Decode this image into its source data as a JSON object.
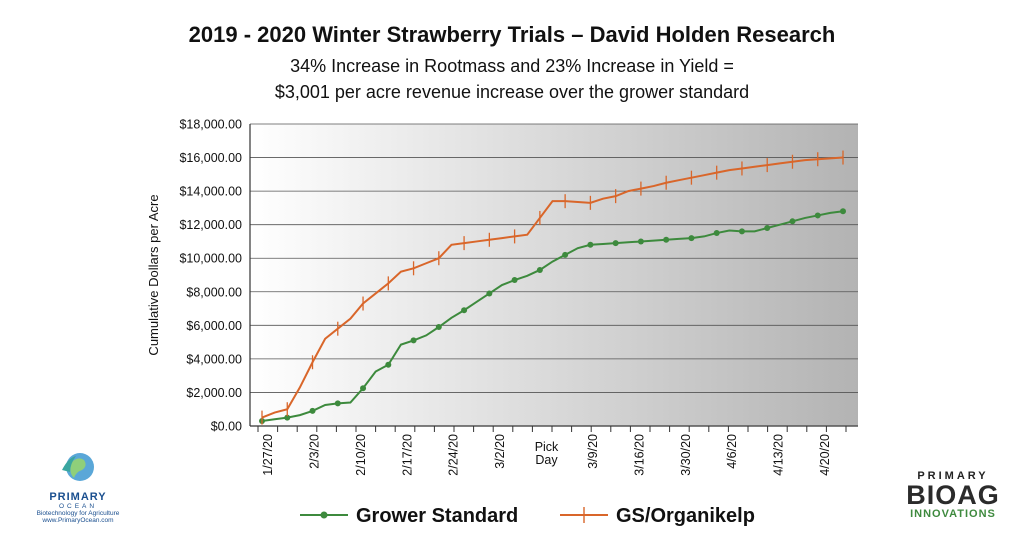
{
  "chart_data": {
    "type": "line",
    "title": "2019 - 2020 Winter Strawberry Trials – David Holden Research",
    "subtitle_lines": [
      "34% Increase in Rootmass and 23% Increase in Yield =",
      "$3,001 per acre revenue increase over the grower standard"
    ],
    "ylabel": "Cumulative Dollars per Acre",
    "xlabel": "",
    "ylim": [
      0,
      18000
    ],
    "yticks": [
      "$0.00",
      "$2,000.00",
      "$4,000.00",
      "$6,000.00",
      "$8,000.00",
      "$10,000.00",
      "$12,000.00",
      "$14,000.00",
      "$16,000.00",
      "$18,000.00"
    ],
    "x_tick_labels": [
      "1/27/20",
      "2/3/20",
      "2/10/20",
      "2/17/20",
      "2/24/20",
      "3/2/20",
      "Pick Day",
      "3/9/20",
      "3/16/20",
      "3/30/20",
      "4/6/20",
      "4/13/20",
      "4/20/20"
    ],
    "grid": true,
    "legend_position": "bottom",
    "series": [
      {
        "name": "Grower Standard",
        "color": "#3d8a3d",
        "marker": "dot",
        "values": [
          300,
          400,
          500,
          650,
          900,
          1250,
          1350,
          1400,
          2250,
          3250,
          3650,
          4850,
          5100,
          5400,
          5900,
          6450,
          6900,
          7400,
          7900,
          8400,
          8700,
          8950,
          9300,
          9800,
          10200,
          10600,
          10800,
          10850,
          10900,
          10950,
          11000,
          11050,
          11100,
          11150,
          11200,
          11300,
          11500,
          11650,
          11600,
          11600,
          11800,
          12000,
          12200,
          12400,
          12550,
          12700,
          12800
        ]
      },
      {
        "name": "GS/Organikelp",
        "color": "#d9662a",
        "marker": "cross",
        "values": [
          500,
          800,
          1000,
          2300,
          3800,
          5200,
          5800,
          6400,
          7300,
          7900,
          8500,
          9200,
          9400,
          9700,
          10000,
          10800,
          10900,
          11000,
          11100,
          11200,
          11300,
          11400,
          12400,
          13400,
          13400,
          13350,
          13300,
          13550,
          13700,
          14000,
          14150,
          14300,
          14500,
          14650,
          14800,
          14950,
          15100,
          15250,
          15350,
          15450,
          15550,
          15650,
          15750,
          15850,
          15900,
          15950,
          16000
        ]
      }
    ]
  },
  "logos": {
    "left": {
      "line1": "PRIMARY",
      "line2": "OCEAN",
      "line3": "Biotechnology for Agriculture",
      "line4": "www.PrimaryOcean.com"
    },
    "right": {
      "line1": "PRIMARY",
      "line2": "BIOAG",
      "line3": "INNOVATIONS"
    }
  }
}
